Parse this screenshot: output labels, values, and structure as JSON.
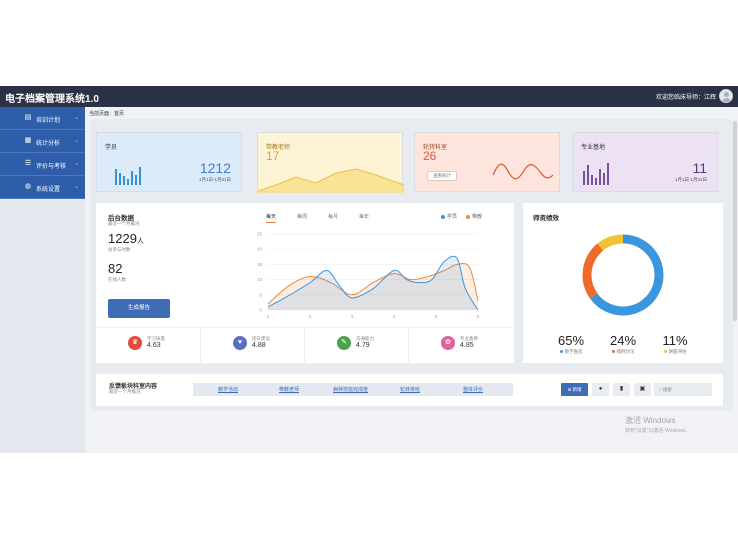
{
  "header": {
    "app_title": "电子档案管理系统1.0",
    "welcome_text": "欢迎您临床导师：江辉"
  },
  "sidebar": {
    "items": [
      {
        "label": "培训计划",
        "icon": "document-icon"
      },
      {
        "label": "统计分析",
        "icon": "chart-icon"
      },
      {
        "label": "评价与考核",
        "icon": "list-icon"
      },
      {
        "label": "系统设置",
        "icon": "globe-icon"
      }
    ]
  },
  "breadcrumb": {
    "prefix": "当前页面：",
    "current": "首页"
  },
  "stats": {
    "students": {
      "title": "学员",
      "value": "1212",
      "range": "1月1日-1月31日"
    },
    "teachers": {
      "title": "带教老师",
      "value": "17"
    },
    "tutors": {
      "title": "轮转科室",
      "value": "26",
      "button": "查看统计"
    },
    "majors": {
      "title": "专业基地",
      "value": "11",
      "range": "1月1日-1月31日"
    }
  },
  "backend_data": {
    "title": "后台数据",
    "subtitle": "最近一个月概况",
    "total_value": "1229",
    "total_unit": "人",
    "total_caption": "总参与时数",
    "online_value": "82",
    "online_caption": "在线人数",
    "report_button": "生成报告",
    "tabs": [
      "每天",
      "每周",
      "每月",
      "每年"
    ],
    "legend": [
      {
        "name": "学员",
        "color": "#3a96dd"
      },
      {
        "name": "带教",
        "color": "#f0883e"
      }
    ]
  },
  "metrics": [
    {
      "label": "学习质量",
      "value": "4.63",
      "icon": "crown-icon",
      "color": "#e14b3b"
    },
    {
      "label": "团队建设",
      "value": "4.88",
      "icon": "heart-icon",
      "color": "#5a6fc0"
    },
    {
      "label": "沟通能力",
      "value": "4.79",
      "icon": "pen-icon",
      "color": "#4ba34b"
    },
    {
      "label": "专业素养",
      "value": "4.85",
      "icon": "palette-icon",
      "color": "#e0609b"
    }
  ],
  "performance": {
    "title": "师资绩效",
    "items": [
      {
        "value": "65%",
        "label": "教学查房",
        "color": "#3a96dd"
      },
      {
        "value": "24%",
        "label": "病例讨论",
        "color": "#f06a2a"
      },
      {
        "value": "11%",
        "label": "讲座评估",
        "color": "#f2c230"
      }
    ]
  },
  "feedback": {
    "title": "反馈板块科室内容",
    "subtitle": "最近一个月概况",
    "tabs": [
      "教学活动",
      "带教老师",
      "病种技能完成度",
      "轮转排班",
      "整体评价"
    ],
    "add_button": "新增",
    "search_placeholder": "搜索"
  },
  "watermark": {
    "title": "激活 Windows",
    "subtitle": "转到\"设置\"以激活 Windows。"
  },
  "chart_data": {
    "type": "line",
    "x": [
      1,
      2,
      3,
      4,
      5,
      6
    ],
    "ylim": [
      0,
      25
    ],
    "yticks": [
      0,
      5,
      10,
      15,
      20,
      25
    ],
    "series": [
      {
        "name": "学员",
        "color": "#3a96dd",
        "values": [
          [
            1,
            1
          ],
          [
            1.4,
            4
          ],
          [
            2,
            9
          ],
          [
            2.4,
            13
          ],
          [
            2.7,
            8
          ],
          [
            3,
            4
          ],
          [
            3.5,
            7
          ],
          [
            4,
            13
          ],
          [
            4.3,
            10
          ],
          [
            4.6,
            9
          ],
          [
            4.9,
            10
          ],
          [
            5.2,
            16
          ],
          [
            5.5,
            17
          ],
          [
            5.7,
            7
          ],
          [
            6,
            0
          ]
        ]
      },
      {
        "name": "带教",
        "color": "#f0883e",
        "values": [
          [
            1,
            2
          ],
          [
            1.5,
            8
          ],
          [
            2,
            11
          ],
          [
            2.5,
            9
          ],
          [
            3,
            5
          ],
          [
            3.5,
            9
          ],
          [
            4,
            12
          ],
          [
            4.4,
            10
          ],
          [
            4.8,
            11
          ],
          [
            5.2,
            13
          ],
          [
            5.5,
            15
          ],
          [
            5.8,
            14
          ],
          [
            6,
            3
          ]
        ]
      }
    ]
  }
}
